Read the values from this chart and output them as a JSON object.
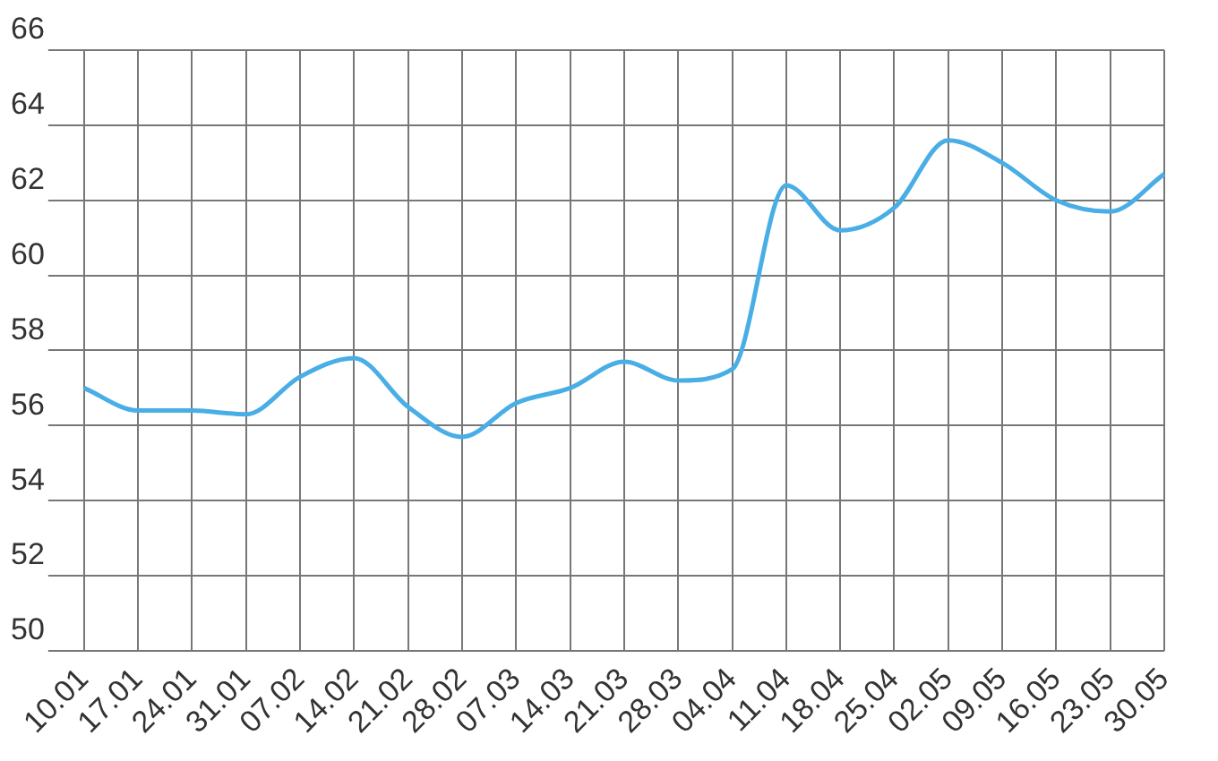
{
  "chart_data": {
    "type": "line",
    "categories": [
      "10.01",
      "17.01",
      "24.01",
      "31.01",
      "07.02",
      "14.02",
      "21.02",
      "28.02",
      "07.03",
      "14.03",
      "21.03",
      "28.03",
      "04.04",
      "11.04",
      "18.04",
      "25.04",
      "02.05",
      "09.05",
      "16.05",
      "23.05",
      "30.05"
    ],
    "series": [
      {
        "color": "#4aaee6",
        "values": [
          57.0,
          56.4,
          56.4,
          56.3,
          57.3,
          57.8,
          56.5,
          55.7,
          56.6,
          57.0,
          57.7,
          57.2,
          57.5,
          62.4,
          61.2,
          61.8,
          63.6,
          63.0,
          62.0,
          61.7,
          62.7
        ]
      }
    ],
    "ylim": [
      50,
      66
    ],
    "yticks": [
      50,
      52,
      54,
      56,
      58,
      60,
      62,
      64,
      66
    ],
    "grid": true,
    "legend": false
  }
}
